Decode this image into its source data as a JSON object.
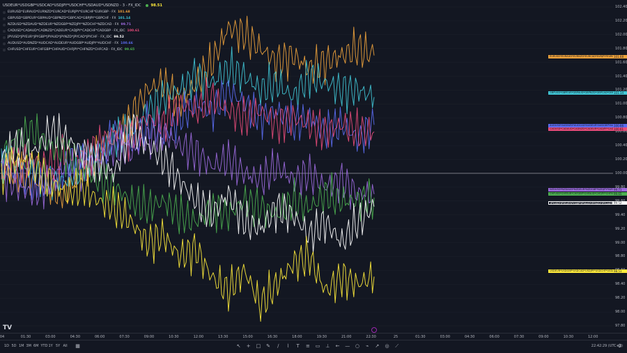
{
  "title": {
    "symbol": "USDEUR*USDGBP*USDCAD*USDJPY*USDCHF*USDAUD*USDNZD - 3 - FX_IDC",
    "value": "98.51"
  },
  "legend": [
    {
      "name": "EURUSD*EURAUD*EURNZD*EURCAD*EURJPY*EURCHF*EURGBP · FX",
      "value": "101.68",
      "color": "#f0a33c"
    },
    {
      "name": "GBPUSD*GBPEUR*GBPAUD*GBPNZD*GBPCAD*GBPJPY*GBPCHF · FX",
      "value": "101.14",
      "color": "#41c7d6"
    },
    {
      "name": "NZDUSD*NZDAUD*NZDEUR*NZDGBP*NZDJPY*NZDCHF*NZDCAD · FX",
      "value": "99.71",
      "color": "#9c6ade"
    },
    {
      "name": "CADUSD*CADAUD*CADNZD*CADEUR*CADJPY*CADCHF*CADGBP · FX_IDC",
      "value": "100.61",
      "color": "#e84b7a"
    },
    {
      "name": "JPYUSD*JPYEUR*JPYGBP*JPYAUD*JPYNZD*JPYCAD*JPYCHF · FX_IDC",
      "value": "99.52",
      "color": "#ffffff"
    },
    {
      "name": "AUDUSD*AUDNZD*AUDCAD*AUDEUR*AUDGBP*AUDJPY*AUDCHF · FX",
      "value": "100.66",
      "color": "#5b6cf0"
    },
    {
      "name": "CHFUSD*CHFEUR*CHFGBP*CHFAUD*CHFJPY*CHFNZD*CHFCAD · FX_IDC",
      "value": "99.65",
      "color": "#4caf50"
    }
  ],
  "right_labels": [
    {
      "text": "EURUSD*EURAUD*EURNZD*EURCAD*EURJPY*EURCHF*EURGBP",
      "value": "101.68",
      "color": "#f0a33c"
    },
    {
      "text": "GBPUSD*GBPEUR*GBPAUD*GBPNZD*GBPCAD*GBPJPY*GBPCHF",
      "value": "101.14",
      "color": "#41c7d6"
    },
    {
      "text": "AUDUSD*AUDNZD*AUDCAD*AUDEUR*AUDGBP*AUDJPY*AUDCHF",
      "value": "100.66",
      "color": "#5b6cf0"
    },
    {
      "text": "CADUSD*CADAUD*CADNZD*CADEUR*CADJPY*CADCHF*CADGBP",
      "value": "100.61",
      "color": "#e84b7a"
    },
    {
      "text": "NZDUSD*NZDAUD*NZDEUR*NZDGBP*NZDJPY*NZDCHF*NZDCAD",
      "value": "99.71",
      "color": "#9c6ade"
    },
    {
      "text": "CHFUSD*CHFEUR*CHFGBP*CHFAUD*CHFJPY*CHFNZD*CHFCAD",
      "value": "99.65",
      "color": "#4caf50"
    },
    {
      "text": "JPYUSD*JPYEUR*JPYGBP*JPYAUD*JPYNZD*JPYCAD*JPYCHF",
      "value": "99.52",
      "color": "#ffffff"
    },
    {
      "text": "USDEUR*USDGBP*USDCAD*USDJPY*USDCHF*USDAUD*USDNZD",
      "value": "98.51",
      "color": "#ffeb3b"
    }
  ],
  "chart_data": {
    "type": "line",
    "ylim": [
      97.8,
      102.4
    ],
    "y_ticks": [
      "102.40",
      "102.20",
      "102.00",
      "101.80",
      "101.60",
      "101.40",
      "101.20",
      "101.00",
      "100.80",
      "100.60",
      "100.40",
      "100.20",
      "100.00",
      "99.80",
      "99.60",
      "99.40",
      "99.20",
      "99.00",
      "98.80",
      "98.60",
      "98.40",
      "98.20",
      "98.00",
      "97.80"
    ],
    "x_ticks": [
      "01:30",
      "03:00",
      "04:30",
      "06:00",
      "07:30",
      "09:00",
      "10:30",
      "12:00",
      "13:30",
      "15:00",
      "16:30",
      "18:00",
      "19:30",
      "21:00",
      "22:30",
      "25",
      "01:30",
      "03:00",
      "04:30",
      "06:00",
      "07:30",
      "09:00",
      "10:30",
      "12:00"
    ],
    "x_ticks_leading": "04",
    "baseline": 100.0,
    "series": [
      {
        "name": "EURUSD*EURAUD*EURNZD*EURCAD*EURJPY*EURCHF*EURGBP",
        "color": "#f0a33c",
        "values": [
          100.1,
          100.0,
          99.9,
          99.8,
          99.7,
          100.0,
          100.3,
          100.5,
          100.8,
          101.2,
          101.3,
          101.0,
          101.3,
          101.6,
          102.1,
          102.0,
          101.8,
          101.6,
          101.7,
          101.5,
          101.6,
          101.7,
          101.8,
          101.7
        ]
      },
      {
        "name": "GBPUSD*GBPEUR*GBPAUD*GBPNZD*GBPCAD*GBPJPY*GBPCHF",
        "color": "#41c7d6",
        "values": [
          100.2,
          100.1,
          100.0,
          99.9,
          99.9,
          100.1,
          100.3,
          100.5,
          100.6,
          100.9,
          101.1,
          101.2,
          101.4,
          101.3,
          101.5,
          101.4,
          101.2,
          101.3,
          101.1,
          101.4,
          101.3,
          101.2,
          101.2,
          101.1
        ]
      },
      {
        "name": "AUDUSD*AUDNZD*AUDCAD*AUDEUR*AUDGBP*AUDJPY*AUDCHF",
        "color": "#5b6cf0",
        "values": [
          100.1,
          100.0,
          99.9,
          99.8,
          100.1,
          100.3,
          100.2,
          100.6,
          100.4,
          100.7,
          100.5,
          100.8,
          101.0,
          100.9,
          101.2,
          101.0,
          100.8,
          100.9,
          100.7,
          100.8,
          100.6,
          100.7,
          100.5,
          100.7
        ]
      },
      {
        "name": "CADUSD*CADAUD*CADNZD*CADEUR*CADJPY*CADCHF*CADGBP",
        "color": "#e84b7a",
        "values": [
          100.0,
          100.1,
          100.2,
          100.1,
          100.3,
          100.2,
          100.4,
          100.6,
          100.5,
          100.8,
          100.7,
          101.0,
          100.9,
          101.1,
          100.9,
          100.8,
          100.9,
          100.7,
          100.8,
          100.7,
          100.6,
          100.7,
          100.6,
          100.6
        ]
      },
      {
        "name": "NZDUSD*NZDAUD*NZDEUR*NZDGBP*NZDJPY*NZDCHF*NZDCAD",
        "color": "#9c6ade",
        "values": [
          100.0,
          99.8,
          99.7,
          99.9,
          100.1,
          100.0,
          100.2,
          100.4,
          100.3,
          100.5,
          100.6,
          100.4,
          100.3,
          100.1,
          100.2,
          100.0,
          99.9,
          100.1,
          99.9,
          100.0,
          99.8,
          99.9,
          99.7,
          99.7
        ]
      },
      {
        "name": "CHFUSD*CHFEUR*CHFGBP*CHFAUD*CHFJPY*CHFNZD*CHFCAD",
        "color": "#4caf50",
        "values": [
          100.3,
          100.5,
          100.6,
          100.4,
          100.3,
          100.1,
          99.9,
          99.8,
          99.6,
          99.5,
          99.6,
          99.4,
          99.3,
          99.5,
          99.4,
          99.6,
          99.5,
          99.4,
          99.6,
          99.5,
          99.7,
          99.6,
          99.6,
          99.65
        ]
      },
      {
        "name": "JPYUSD*JPYEUR*JPYGBP*JPYAUD*JPYNZD*JPYCAD*JPYCHF",
        "color": "#ffffff",
        "values": [
          100.2,
          100.4,
          100.3,
          100.6,
          100.5,
          100.3,
          100.1,
          100.0,
          100.7,
          100.4,
          100.2,
          99.9,
          99.6,
          99.4,
          99.7,
          99.3,
          99.2,
          99.5,
          99.4,
          99.1,
          99.3,
          99.0,
          99.3,
          99.52
        ]
      },
      {
        "name": "USDEUR*USDGBP*USDCAD*USDJPY*USDCHF*USDAUD*USDNZD",
        "color": "#ffeb3b",
        "values": [
          100.0,
          100.2,
          100.1,
          99.9,
          99.7,
          99.8,
          99.6,
          99.5,
          99.3,
          99.0,
          99.1,
          98.8,
          98.9,
          98.5,
          98.3,
          98.6,
          98.1,
          98.4,
          98.7,
          98.8,
          98.3,
          98.5,
          98.4,
          98.51
        ]
      }
    ]
  },
  "ranges": [
    "1D",
    "5D",
    "1M",
    "3M",
    "6M",
    "YTD",
    "1Y",
    "5Y",
    "All"
  ],
  "tools": [
    "cursor-icon",
    "crosshair-icon",
    "rectangle-icon",
    "pencil-icon",
    "brush-icon",
    "path-icon",
    "text-icon",
    "fib-icon",
    "channel-icon",
    "measure-icon",
    "arrow-left-icon",
    "line-icon",
    "circle-icon",
    "polyline-icon",
    "trend-icon",
    "pin-icon",
    "ruler-icon"
  ],
  "clock": "22:42:29 (UTC+2)",
  "logo": "TV"
}
